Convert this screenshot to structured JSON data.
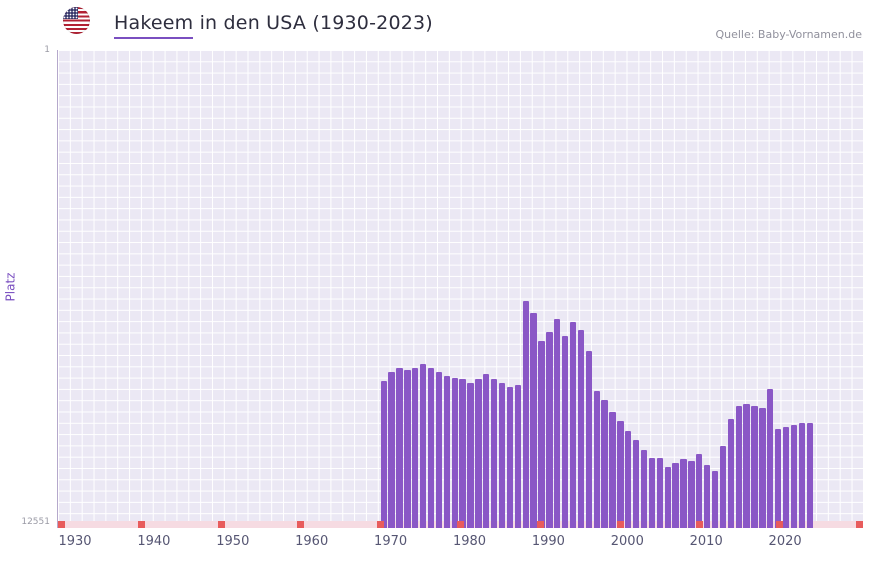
{
  "header": {
    "name": "Hakeem",
    "title_rest": " in den USA (1930-2023)",
    "source": "Quelle: Baby-Vornamen.de",
    "flag_icon": "us-flag-icon"
  },
  "axis": {
    "ylabel": "Platz",
    "y_top": "1",
    "y_bottom": "12551"
  },
  "colors": {
    "bar": "#8a57c6",
    "accent_underline": "#7a4fc0",
    "plot_background": "#ebe8f4",
    "decade_tick": "#e85c5c",
    "baseline_strip": "#f6dbe2"
  },
  "chart_data": {
    "type": "bar",
    "title": "Hakeem in den USA (1930-2023)",
    "ylabel": "Platz",
    "y_axis": {
      "inverted": true,
      "min": 1,
      "max": 12551,
      "top_label": "1",
      "bottom_label": "12551"
    },
    "x_start": 1930,
    "x_end": 2023,
    "xticks": [
      1930,
      1940,
      1950,
      1960,
      1970,
      1980,
      1990,
      2000,
      2010,
      2020
    ],
    "grid": true,
    "legend": false,
    "note": "Rank per year; no ranked data before 1969. Values estimated from bar heights.",
    "years": [
      1969,
      1970,
      1971,
      1972,
      1973,
      1974,
      1975,
      1976,
      1977,
      1978,
      1979,
      1980,
      1981,
      1982,
      1983,
      1984,
      1985,
      1986,
      1987,
      1988,
      1989,
      1990,
      1991,
      1992,
      1993,
      1994,
      1995,
      1996,
      1997,
      1998,
      1999,
      2000,
      2001,
      2002,
      2003,
      2004,
      2005,
      2006,
      2007,
      2008,
      2009,
      2010,
      2011,
      2012,
      2013,
      2014,
      2015,
      2016,
      2017,
      2018,
      2019,
      2020,
      2021,
      2022,
      2023
    ],
    "ranks": [
      8700,
      8450,
      8350,
      8400,
      8350,
      8250,
      8350,
      8450,
      8550,
      8600,
      8650,
      8750,
      8650,
      8500,
      8650,
      8750,
      8850,
      8800,
      6600,
      6900,
      7650,
      7400,
      7050,
      7500,
      7150,
      7350,
      7900,
      8950,
      9200,
      9500,
      9750,
      10000,
      10250,
      10500,
      10700,
      10700,
      10950,
      10850,
      10750,
      10800,
      10600,
      10900,
      11050,
      10400,
      9700,
      9350,
      9300,
      9350,
      9400,
      8900,
      9950,
      9900,
      9850,
      9800,
      9800
    ]
  }
}
